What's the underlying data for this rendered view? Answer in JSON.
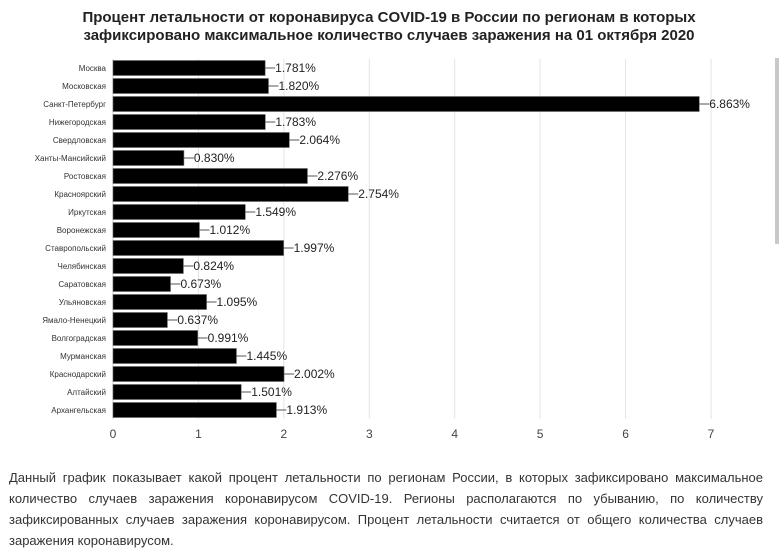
{
  "chart_data": {
    "type": "bar",
    "orientation": "horizontal",
    "title_lines": [
      "Процент летальности от коронавируса COVID-19 в России по регионам в которых",
      "зафиксировано максимальное количество случаев заражения на 01 октября 2020"
    ],
    "categories": [
      "Москва",
      "Московская",
      "Санкт-Петербург",
      "Нижегородская",
      "Свердловская",
      "Ханты-Мансийский",
      "Ростовская",
      "Красноярский",
      "Иркутская",
      "Воронежская",
      "Ставропольский",
      "Челябинская",
      "Саратовская",
      "Ульяновская",
      "Ямало-Ненецкий",
      "Волгоградская",
      "Мурманская",
      "Краснодарский",
      "Алтайский",
      "Архангельская"
    ],
    "values": [
      1.781,
      1.82,
      6.863,
      1.783,
      2.064,
      0.83,
      2.276,
      2.754,
      1.549,
      1.012,
      1.997,
      0.824,
      0.673,
      1.095,
      0.637,
      0.991,
      1.445,
      2.002,
      1.501,
      1.913
    ],
    "value_labels": [
      "1.781%",
      "1.820%",
      "6.863%",
      "1.783%",
      "2.064%",
      "0.830%",
      "2.276%",
      "2.754%",
      "1.549%",
      "1.012%",
      "1.997%",
      "0.824%",
      "0.673%",
      "1.095%",
      "0.637%",
      "0.991%",
      "1.445%",
      "2.002%",
      "1.501%",
      "1.913%"
    ],
    "xticks": [
      "0",
      "1",
      "2",
      "3",
      "4",
      "5",
      "6",
      "7"
    ],
    "xlim": [
      0,
      7
    ],
    "grid": true,
    "bar_color": "#000000",
    "grid_color": "#e3e3e3"
  },
  "description": "Данный график показывает какой процент летальности по регионам России, в которых зафиксировано максимальное количество случаев заражения коронавирусом COVID-19. Регионы располагаются по убыванию, по количеству зафиксированных случаев заражения коронавирусом. Процент летальности считается от общего количества случаев заражения коронавирусом."
}
